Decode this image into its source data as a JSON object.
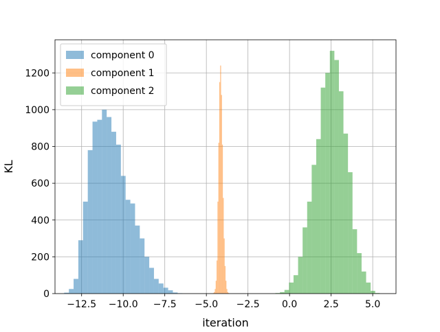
{
  "chart_data": {
    "type": "histogram",
    "title": "",
    "xlabel": "iteration",
    "ylabel": "KL",
    "xlim": [
      -14.1,
      6.4
    ],
    "ylim": [
      0,
      1380
    ],
    "xticks": [
      -12.5,
      -10.0,
      -7.5,
      -5.0,
      -2.5,
      0.0,
      2.5,
      5.0
    ],
    "xtick_labels": [
      "−12.5",
      "−10.0",
      "−7.5",
      "−5.0",
      "−2.5",
      "0.0",
      "2.5",
      "5.0"
    ],
    "yticks": [
      0,
      200,
      400,
      600,
      800,
      1000,
      1200
    ],
    "ytick_labels": [
      "0",
      "200",
      "400",
      "600",
      "800",
      "1000",
      "1200"
    ],
    "grid": true,
    "legend_position": "top-left",
    "series": [
      {
        "name": "component 0",
        "color": "#1f77b4",
        "alpha": 0.5,
        "bin_start": -13.55,
        "bin_width": 0.2842,
        "counts": [
          5,
          25,
          80,
          290,
          500,
          780,
          935,
          945,
          1000,
          960,
          880,
          810,
          640,
          510,
          490,
          370,
          300,
          200,
          140,
          80,
          55,
          32,
          18,
          6,
          2
        ]
      },
      {
        "name": "component 1",
        "color": "#ff7f0e",
        "alpha": 0.5,
        "bin_start": -4.6,
        "bin_width": 0.0537,
        "counts": [
          3,
          8,
          25,
          70,
          180,
          500,
          820,
          1150,
          1240,
          1080,
          810,
          520,
          300,
          150,
          70,
          25,
          8,
          3
        ]
      },
      {
        "name": "component 2",
        "color": "#2ca02c",
        "alpha": 0.5,
        "bin_start": -0.85,
        "bin_width": 0.2727,
        "counts": [
          3,
          8,
          20,
          60,
          100,
          200,
          360,
          500,
          700,
          840,
          1120,
          1200,
          1320,
          1270,
          1100,
          870,
          660,
          350,
          220,
          120,
          60,
          15,
          3
        ]
      }
    ]
  }
}
